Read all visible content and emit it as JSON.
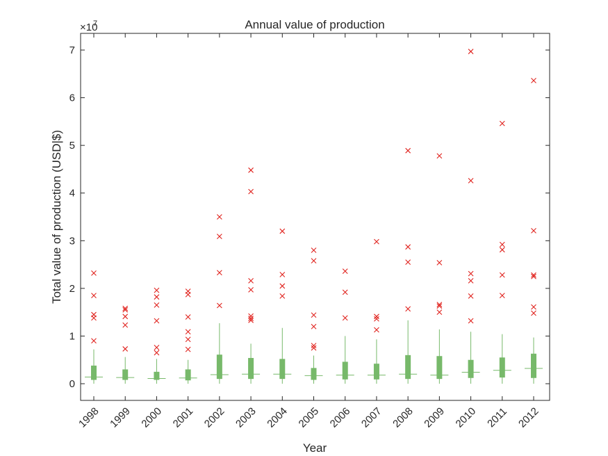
{
  "chart_data": {
    "type": "box",
    "title": "Annual value of production",
    "xlabel": "Year",
    "ylabel": "Total value of production (USD|$)",
    "y_exponent_label": "×10",
    "y_exponent_power": "7",
    "ylim": [
      -3500000,
      73500000
    ],
    "yticks": [
      0,
      10000000,
      20000000,
      30000000,
      40000000,
      50000000,
      60000000,
      70000000
    ],
    "ytick_labels": [
      "0",
      "1",
      "2",
      "3",
      "4",
      "5",
      "6",
      "7"
    ],
    "categories": [
      "1998",
      "1999",
      "2000",
      "2001",
      "2002",
      "2003",
      "2004",
      "2005",
      "2006",
      "2007",
      "2008",
      "2009",
      "2010",
      "2011",
      "2012"
    ],
    "box_color": "#77b96a",
    "outlier_color": "#e0231e",
    "boxes": [
      {
        "year": "1998",
        "whisker_low": 0,
        "q1": 800000,
        "median": 1400000,
        "q3": 3800000,
        "whisker_high": 7200000,
        "outliers": [
          9000000,
          13800000,
          14500000,
          18500000,
          23200000
        ]
      },
      {
        "year": "1999",
        "whisker_low": 0,
        "q1": 800000,
        "median": 1300000,
        "q3": 3000000,
        "whisker_high": 5600000,
        "outliers": [
          7300000,
          12300000,
          14100000,
          15500000,
          15800000
        ]
      },
      {
        "year": "2000",
        "whisker_low": 0,
        "q1": 800000,
        "median": 1100000,
        "q3": 2500000,
        "whisker_high": 5200000,
        "outliers": [
          6500000,
          7600000,
          13200000,
          16500000,
          18200000,
          19600000
        ]
      },
      {
        "year": "2001",
        "whisker_low": 0,
        "q1": 700000,
        "median": 1200000,
        "q3": 3000000,
        "whisker_high": 5000000,
        "outliers": [
          7200000,
          9300000,
          10900000,
          14000000,
          18700000,
          19400000
        ]
      },
      {
        "year": "2002",
        "whisker_low": 0,
        "q1": 1000000,
        "median": 1900000,
        "q3": 6100000,
        "whisker_high": 12700000,
        "outliers": [
          16400000,
          23300000,
          30900000,
          35000000
        ]
      },
      {
        "year": "2003",
        "whisker_low": 0,
        "q1": 1000000,
        "median": 2000000,
        "q3": 5400000,
        "whisker_high": 8400000,
        "outliers": [
          13300000,
          13700000,
          14200000,
          19700000,
          21600000,
          40300000,
          44800000
        ]
      },
      {
        "year": "2004",
        "whisker_low": 0,
        "q1": 1000000,
        "median": 2000000,
        "q3": 5200000,
        "whisker_high": 11700000,
        "outliers": [
          18400000,
          20500000,
          22900000,
          32000000
        ]
      },
      {
        "year": "2005",
        "whisker_low": 0,
        "q1": 800000,
        "median": 1700000,
        "q3": 3300000,
        "whisker_high": 5900000,
        "outliers": [
          7500000,
          8000000,
          12000000,
          14400000,
          25800000,
          28000000
        ]
      },
      {
        "year": "2006",
        "whisker_low": 0,
        "q1": 900000,
        "median": 1800000,
        "q3": 4600000,
        "whisker_high": 10000000,
        "outliers": [
          13800000,
          19200000,
          23600000
        ]
      },
      {
        "year": "2007",
        "whisker_low": 0,
        "q1": 900000,
        "median": 1800000,
        "q3": 4200000,
        "whisker_high": 9300000,
        "outliers": [
          11300000,
          13600000,
          14100000,
          29800000
        ]
      },
      {
        "year": "2008",
        "whisker_low": 0,
        "q1": 1000000,
        "median": 2000000,
        "q3": 6000000,
        "whisker_high": 13300000,
        "outliers": [
          15700000,
          25500000,
          28700000,
          48900000
        ]
      },
      {
        "year": "2009",
        "whisker_low": 0,
        "q1": 1000000,
        "median": 1800000,
        "q3": 5800000,
        "whisker_high": 11400000,
        "outliers": [
          15000000,
          16300000,
          16600000,
          25400000,
          47800000
        ]
      },
      {
        "year": "2010",
        "whisker_low": 0,
        "q1": 1200000,
        "median": 2400000,
        "q3": 5000000,
        "whisker_high": 10900000,
        "outliers": [
          13200000,
          18400000,
          21600000,
          23100000,
          42600000,
          69700000
        ]
      },
      {
        "year": "2011",
        "whisker_low": 0,
        "q1": 1300000,
        "median": 2800000,
        "q3": 5500000,
        "whisker_high": 10400000,
        "outliers": [
          18500000,
          22800000,
          28100000,
          29200000,
          54600000
        ]
      },
      {
        "year": "2012",
        "whisker_low": 0,
        "q1": 1200000,
        "median": 3200000,
        "q3": 6300000,
        "whisker_high": 9700000,
        "outliers": [
          14800000,
          16100000,
          22500000,
          22800000,
          32100000,
          63600000
        ]
      }
    ]
  }
}
